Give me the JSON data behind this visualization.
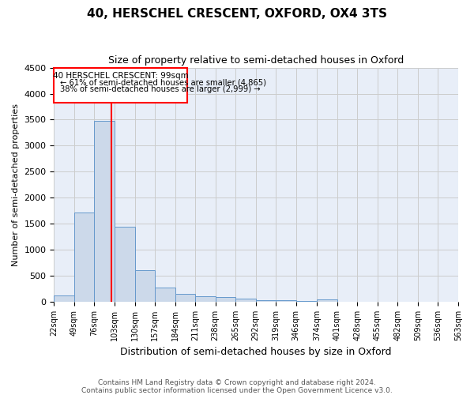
{
  "title1": "40, HERSCHEL CRESCENT, OXFORD, OX4 3TS",
  "title2": "Size of property relative to semi-detached houses in Oxford",
  "xlabel": "Distribution of semi-detached houses by size in Oxford",
  "ylabel": "Number of semi-detached properties",
  "footnote1": "Contains HM Land Registry data © Crown copyright and database right 2024.",
  "footnote2": "Contains public sector information licensed under the Open Government Licence v3.0.",
  "annotation_title": "40 HERSCHEL CRESCENT: 99sqm",
  "annotation_line1": "← 61% of semi-detached houses are smaller (4,865)",
  "annotation_line2": "38% of semi-detached houses are larger (2,999) →",
  "property_size": 99,
  "bin_edges": [
    22,
    49,
    76,
    103,
    130,
    157,
    184,
    211,
    238,
    265,
    292,
    319,
    346,
    374,
    401,
    428,
    455,
    482,
    509,
    536,
    563
  ],
  "bin_labels": [
    "22sqm",
    "49sqm",
    "76sqm",
    "103sqm",
    "130sqm",
    "157sqm",
    "184sqm",
    "211sqm",
    "238sqm",
    "265sqm",
    "292sqm",
    "319sqm",
    "346sqm",
    "374sqm",
    "401sqm",
    "428sqm",
    "455sqm",
    "482sqm",
    "509sqm",
    "536sqm",
    "563sqm"
  ],
  "bar_heights": [
    120,
    1720,
    3470,
    1440,
    610,
    270,
    155,
    100,
    90,
    60,
    35,
    25,
    20,
    40,
    5,
    3,
    2,
    1,
    1,
    0
  ],
  "bar_color": "#ccd9ea",
  "bar_edge_color": "#6699cc",
  "vline_x": 99,
  "vline_color": "red",
  "ylim": [
    0,
    4500
  ],
  "yticks": [
    0,
    500,
    1000,
    1500,
    2000,
    2500,
    3000,
    3500,
    4000,
    4500
  ],
  "grid_color": "#cccccc",
  "background_color": "#e8eef8",
  "annotation_box_edge": "red",
  "title1_fontsize": 11,
  "title2_fontsize": 9,
  "ylabel_fontsize": 8,
  "xlabel_fontsize": 9
}
